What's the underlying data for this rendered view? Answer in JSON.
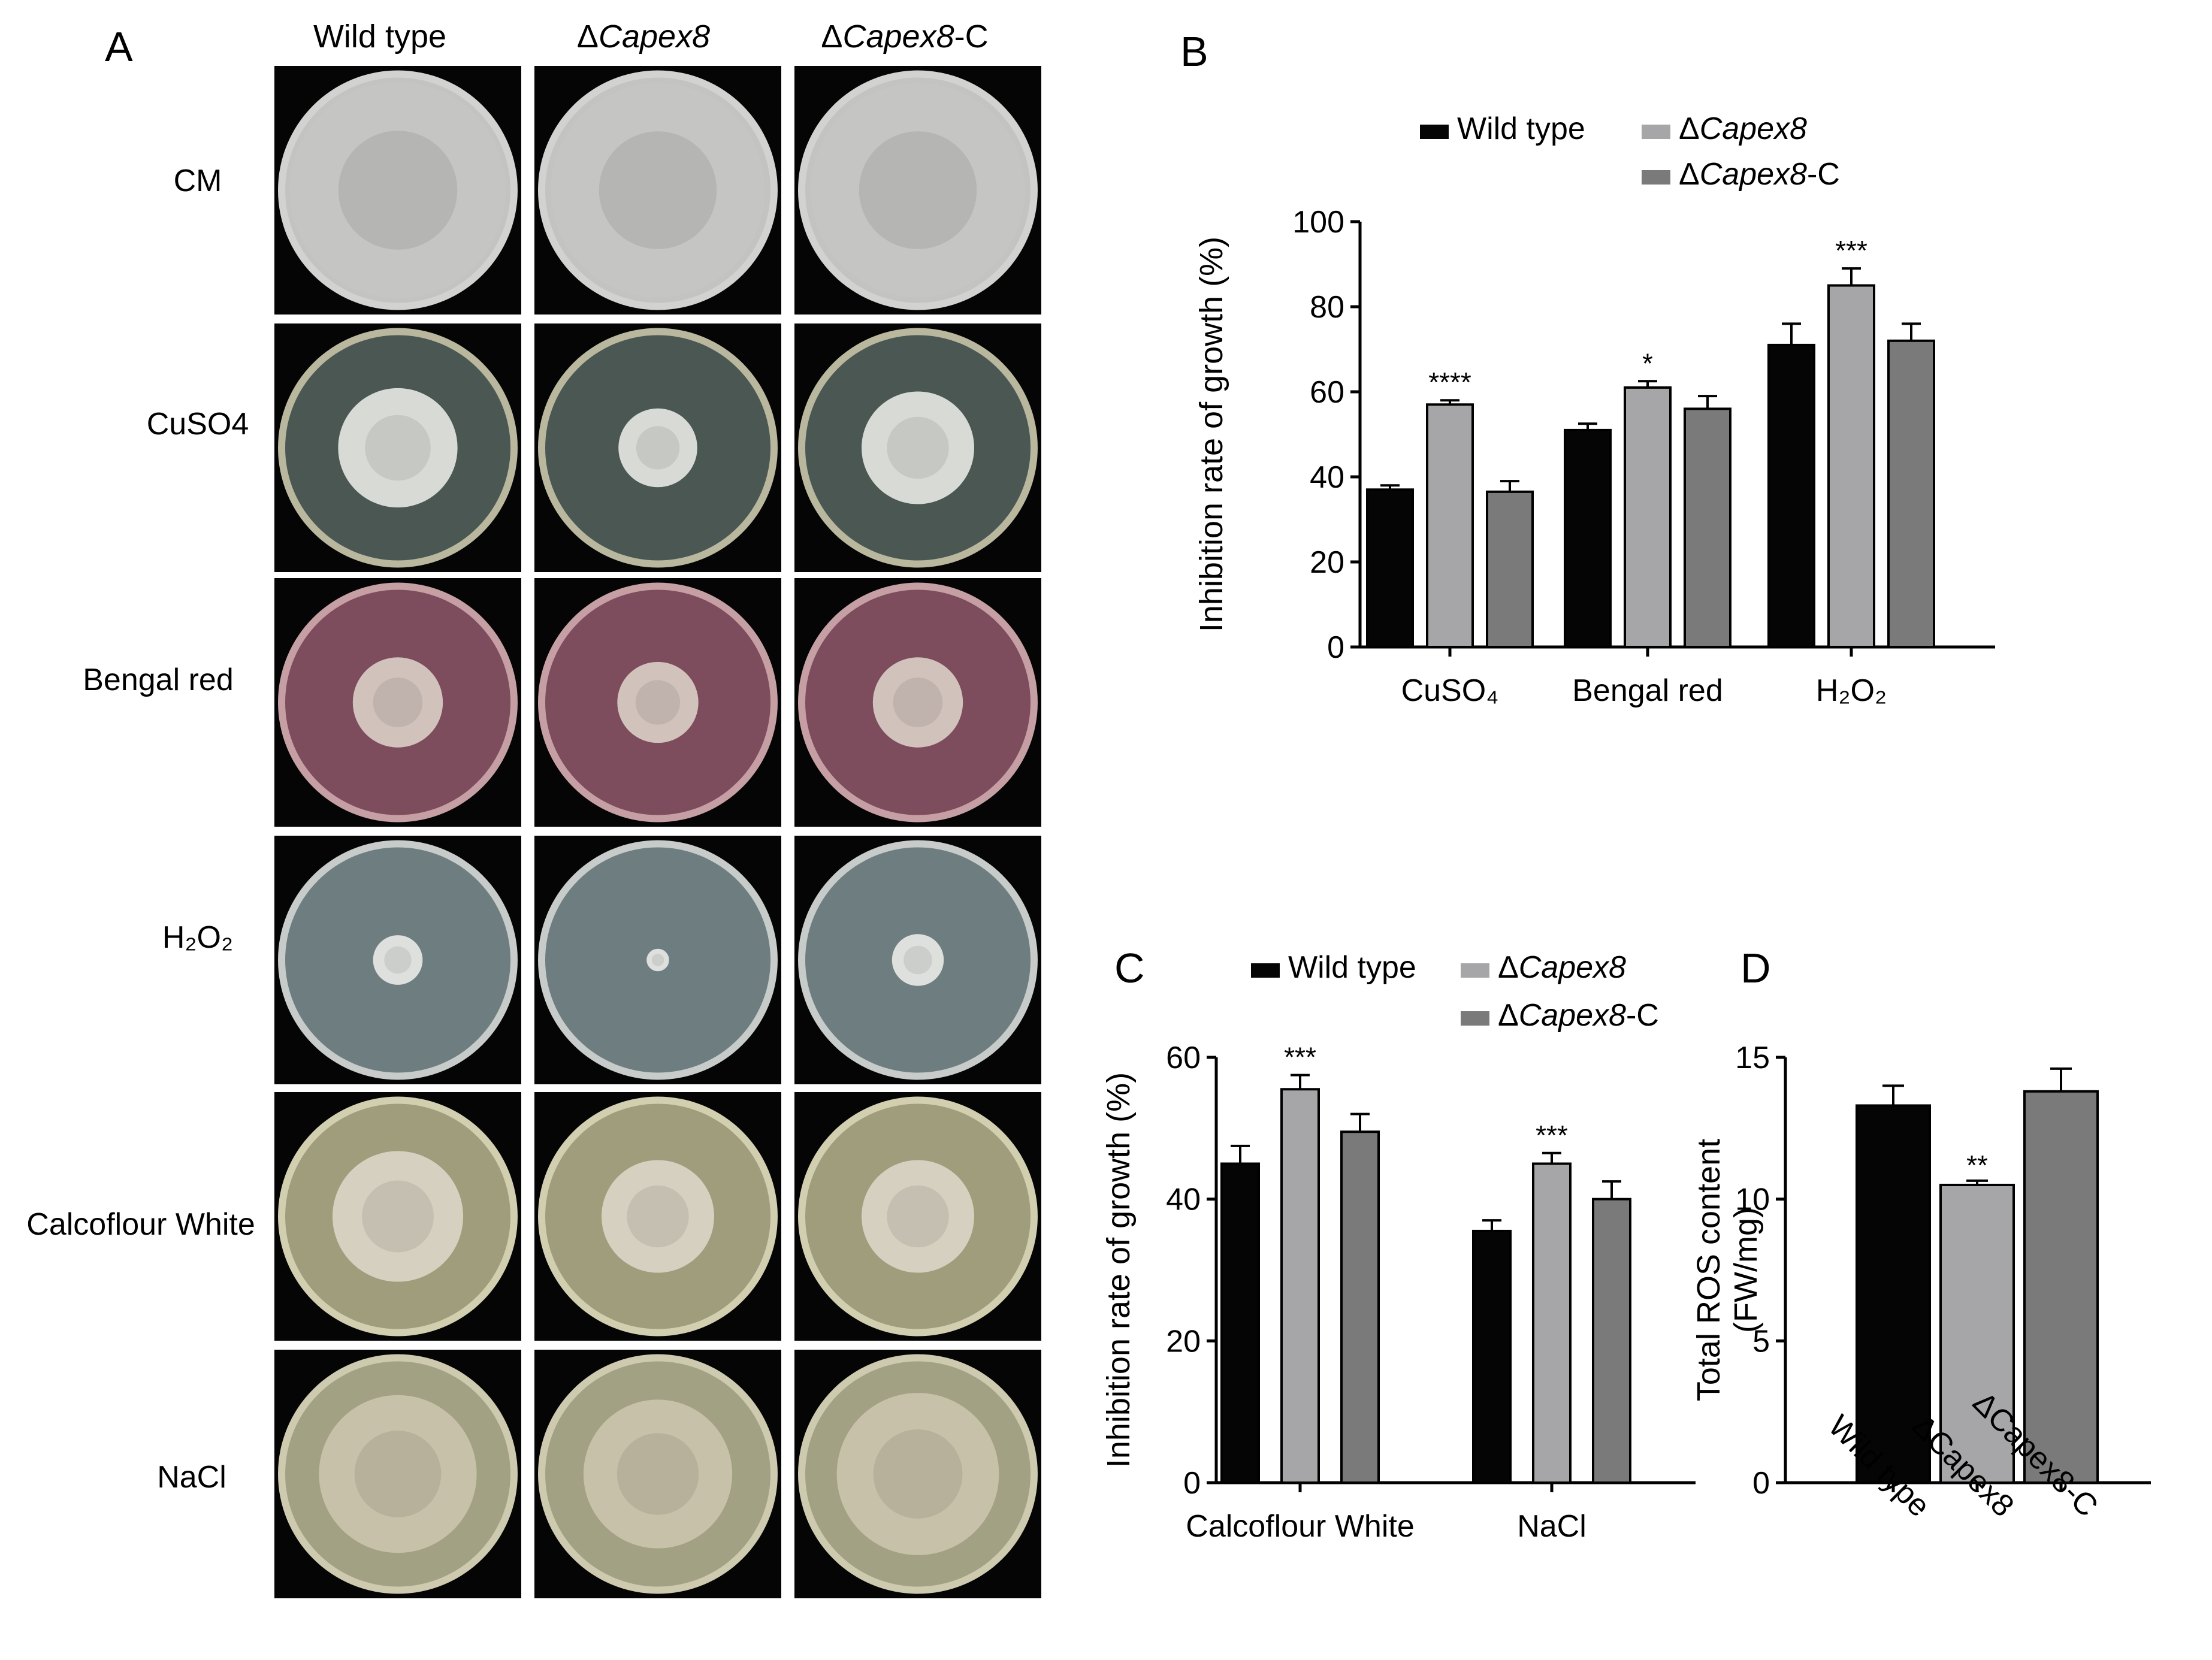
{
  "panel_a": {
    "letter": "A",
    "columns": [
      {
        "prefix": "",
        "name": "Wild type",
        "suffix": ""
      },
      {
        "prefix": "Δ",
        "name": "Capex8",
        "suffix": ""
      },
      {
        "prefix": "Δ",
        "name": "Capex8",
        "suffix": "-C"
      }
    ],
    "rows": [
      "CM",
      "CuSO4",
      "Bengal red",
      "H₂O₂",
      "Calcoflour White",
      "NaCl"
    ],
    "plates": [
      {
        "medium": "#c3c3c1",
        "rim": "#d2d2d0",
        "colony": "#c6c6c4",
        "colony_frac": [
          0.96,
          0.95,
          0.95
        ]
      },
      {
        "medium": "#4a5753",
        "rim": "#b9b79d",
        "colony": "#e3e5e1",
        "colony_frac": [
          0.53,
          0.35,
          0.5
        ]
      },
      {
        "medium": "#7d4c5d",
        "rim": "#c69fa4",
        "colony": "#d8cdc4",
        "colony_frac": [
          0.4,
          0.36,
          0.4
        ]
      },
      {
        "medium": "#6d7d80",
        "rim": "#c7cbc9",
        "colony": "#e8e8e6",
        "colony_frac": [
          0.22,
          0.1,
          0.23
        ]
      },
      {
        "medium": "#9f9d7b",
        "rim": "#d2cfb0",
        "colony": "#d9d5c5",
        "colony_frac": [
          0.58,
          0.5,
          0.5
        ]
      },
      {
        "medium": "#a3a183",
        "rim": "#cdcab0",
        "colony": "#cac3ae",
        "colony_frac": [
          0.7,
          0.66,
          0.72
        ]
      }
    ]
  },
  "legend": {
    "wild_type": "Wild type",
    "delta": "Δ",
    "strain": "Capex8",
    "complement_suffix": "-C"
  },
  "colors": {
    "wild_type": "#050505",
    "mutant": "#a6a6a8",
    "complement": "#7a7a7a"
  },
  "chart_data": [
    {
      "panel": "B",
      "type": "bar",
      "ylabel": "Inhibition rate of growth (%)",
      "xlabel": "",
      "categories": [
        "CuSO₄",
        "Bengal red",
        "H₂O₂"
      ],
      "ylim": [
        0,
        100
      ],
      "yticks": [
        0,
        20,
        40,
        60,
        80,
        100
      ],
      "series": [
        {
          "name": "Wild type",
          "values": [
            37,
            51,
            71
          ],
          "errors": [
            1,
            1.5,
            5
          ]
        },
        {
          "name": "ΔCapex8",
          "values": [
            57,
            61,
            85
          ],
          "errors": [
            1,
            1.5,
            4
          ]
        },
        {
          "name": "ΔCapex8-C",
          "values": [
            36.5,
            56,
            72
          ],
          "errors": [
            2.5,
            3,
            4
          ]
        }
      ],
      "significance": [
        "****",
        "*",
        "***"
      ]
    },
    {
      "panel": "C",
      "type": "bar",
      "ylabel": "Inhibition rate of growth (%)",
      "xlabel": "",
      "categories": [
        "Calcoflour White",
        "NaCl"
      ],
      "ylim": [
        0,
        60
      ],
      "yticks": [
        0,
        20,
        40,
        60
      ],
      "series": [
        {
          "name": "Wild type",
          "values": [
            45,
            35.5
          ],
          "errors": [
            2.5,
            1.5
          ]
        },
        {
          "name": "ΔCapex8",
          "values": [
            55.5,
            45
          ],
          "errors": [
            2,
            1.5
          ]
        },
        {
          "name": "ΔCapex8-C",
          "values": [
            49.5,
            40
          ],
          "errors": [
            2.5,
            2.5
          ]
        }
      ],
      "significance": [
        "***",
        "***"
      ]
    },
    {
      "panel": "D",
      "type": "bar",
      "ylabel": "Total ROS content",
      "ylabel2": "(FW/mg)",
      "xlabel": "",
      "categories": [
        "Wild type",
        "ΔCapex8",
        "ΔCapex8-C"
      ],
      "ylim": [
        0,
        15
      ],
      "yticks": [
        0,
        5,
        10,
        15
      ],
      "values": [
        13.3,
        10.5,
        13.8
      ],
      "errors": [
        0.7,
        0.15,
        0.8
      ],
      "significance": [
        "",
        "**",
        ""
      ]
    }
  ]
}
